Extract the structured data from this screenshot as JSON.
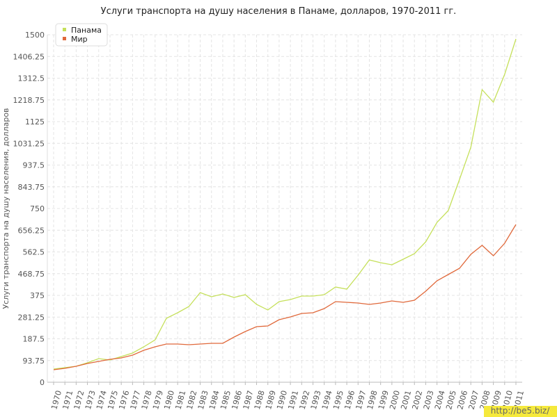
{
  "chart_data": {
    "type": "line",
    "title": "Услуги транспорта на душу населения в Панаме, долларов, 1970-2011 гг.",
    "y_label": "Услуги транспорта на душу населения, долларов",
    "watermark": "http://be5.biz/",
    "categories": [
      "1970",
      "1971",
      "1972",
      "1973",
      "1974",
      "1975",
      "1976",
      "1977",
      "1978",
      "1979",
      "1980",
      "1981",
      "1982",
      "1983",
      "1984",
      "1985",
      "1986",
      "1987",
      "1988",
      "1989",
      "1990",
      "1991",
      "1992",
      "1993",
      "1994",
      "1995",
      "1996",
      "1997",
      "1998",
      "1999",
      "2000",
      "2001",
      "2002",
      "2003",
      "2004",
      "2005",
      "2006",
      "2007",
      "2008",
      "2009",
      "2010",
      "2011"
    ],
    "series": [
      {
        "name": "Панама",
        "color": "#c5e05a",
        "values": [
          57,
          63,
          69,
          84,
          102,
          96,
          111,
          126,
          153,
          183,
          276,
          300,
          327,
          387,
          369,
          381,
          366,
          378,
          336,
          312,
          348,
          357,
          372,
          372,
          378,
          411,
          402,
          462,
          528,
          516,
          507,
          531,
          555,
          606,
          690,
          741,
          876,
          1014,
          1263,
          1209,
          1329,
          1482
        ]
      },
      {
        "name": "Мир",
        "color": "#e0683a",
        "values": [
          54,
          60,
          69,
          81,
          90,
          99,
          105,
          117,
          138,
          153,
          165,
          165,
          162,
          165,
          168,
          168,
          195,
          219,
          240,
          243,
          270,
          282,
          297,
          300,
          318,
          348,
          345,
          342,
          336,
          342,
          351,
          345,
          354,
          393,
          438,
          465,
          492,
          552,
          591,
          546,
          600,
          681
        ]
      }
    ],
    "ylim": [
      0,
      1500
    ],
    "yticks": [
      0,
      93.75,
      187.5,
      281.25,
      375,
      468.75,
      562.5,
      656.25,
      750,
      843.75,
      937.5,
      1031.25,
      1125,
      1218.75,
      1312.5,
      1406.25,
      1500
    ],
    "grid": true,
    "legend": "top-left"
  }
}
